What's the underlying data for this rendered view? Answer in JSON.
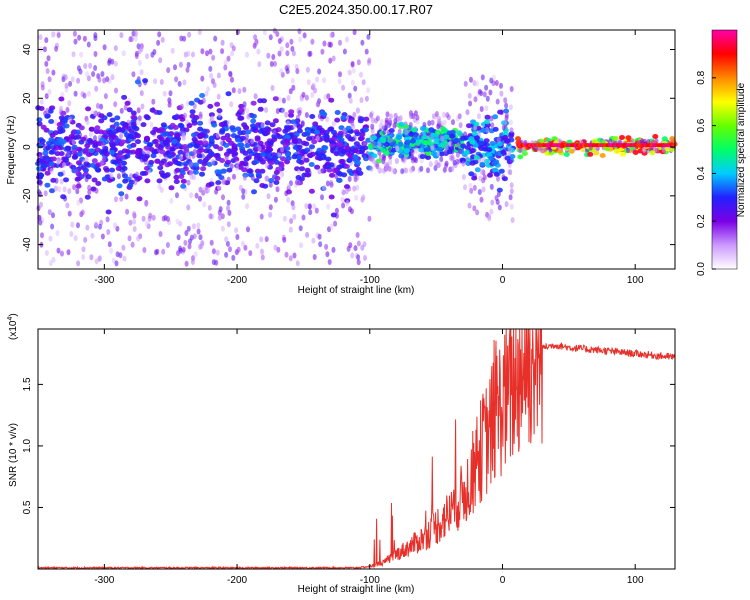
{
  "title": "C2E5.2024.350.00.17.R07",
  "chart_data": [
    {
      "type": "heatmap",
      "xlabel": "Height of straight line (km)",
      "ylabel": "Frequency (Hz)",
      "xlim": [
        -350,
        130
      ],
      "ylim": [
        -50,
        48
      ],
      "xticks": [
        -300,
        -200,
        -100,
        0,
        100
      ],
      "xtick_labels": [
        "-300",
        "-200",
        "-100",
        "0",
        "100"
      ],
      "yticks": [
        -40,
        -20,
        0,
        20,
        40
      ],
      "ytick_labels": [
        "-40",
        "-20",
        "0",
        "20",
        "40"
      ],
      "colorbar": {
        "label": "Normalized spectral amplitude",
        "range": [
          0,
          1
        ],
        "ticks": [
          0.0,
          0.2,
          0.4,
          0.6,
          0.8
        ],
        "tick_labels": [
          "0.0",
          "0.2",
          "0.4",
          "0.6",
          "0.8"
        ],
        "colors": [
          "#ffffff",
          "#cc99ff",
          "#7a00e6",
          "#2222ff",
          "#00ccff",
          "#00ff66",
          "#66ff00",
          "#ffff00",
          "#ff8800",
          "#ff0000",
          "#ff00aa"
        ]
      },
      "regions": [
        {
          "x": [
            -350,
            -100
          ],
          "center_hz": 0,
          "core_halfwidth_hz": 8,
          "spread_hz": 48,
          "peak": 0.35
        },
        {
          "x": [
            -100,
            -30
          ],
          "center_hz": 2,
          "core_halfwidth_hz": 3,
          "spread_hz": 12,
          "peak": 0.55
        },
        {
          "x": [
            -30,
            8
          ],
          "center_hz": 0,
          "core_halfwidth_hz": 6,
          "spread_hz": 30,
          "peak": 0.45
        },
        {
          "x": [
            10,
            130
          ],
          "center_hz": 0.5,
          "core_halfwidth_hz": 1.5,
          "spread_hz": 2,
          "peak": 0.95
        }
      ]
    },
    {
      "type": "line",
      "xlabel": "Height of straight line (km)",
      "ylabel": "SNR (10 * v/v)",
      "y_multiplier": "(x10",
      "y_multiplier_exp": "4",
      "y_multiplier_close": ")",
      "xlim": [
        -350,
        130
      ],
      "ylim": [
        0,
        1.95
      ],
      "xticks": [
        -300,
        -200,
        -100,
        0,
        100
      ],
      "xtick_labels": [
        "-300",
        "-200",
        "-100",
        "0",
        "100"
      ],
      "yticks": [
        0.5,
        1.0,
        1.5
      ],
      "ytick_labels": [
        "0.5",
        "1.0",
        "1.5"
      ],
      "line_color": "#e8302a",
      "series": [
        {
          "x": [
            -350,
            -300,
            -250,
            -200,
            -150,
            -110,
            -100,
            -90,
            -80,
            -70,
            -60,
            -50,
            -40,
            -30,
            -25,
            -20,
            -15,
            -10,
            -5,
            0,
            5,
            10,
            15,
            20,
            30,
            40,
            50,
            60,
            70,
            80,
            90,
            100,
            110,
            120,
            130
          ],
          "values": [
            0.01,
            0.01,
            0.01,
            0.01,
            0.01,
            0.01,
            0.02,
            0.05,
            0.12,
            0.18,
            0.25,
            0.35,
            0.45,
            0.6,
            0.7,
            0.85,
            1.0,
            1.1,
            1.25,
            1.35,
            1.4,
            1.55,
            1.65,
            1.72,
            1.8,
            1.82,
            1.8,
            1.79,
            1.78,
            1.77,
            1.76,
            1.75,
            1.74,
            1.73,
            1.72
          ]
        }
      ]
    }
  ]
}
